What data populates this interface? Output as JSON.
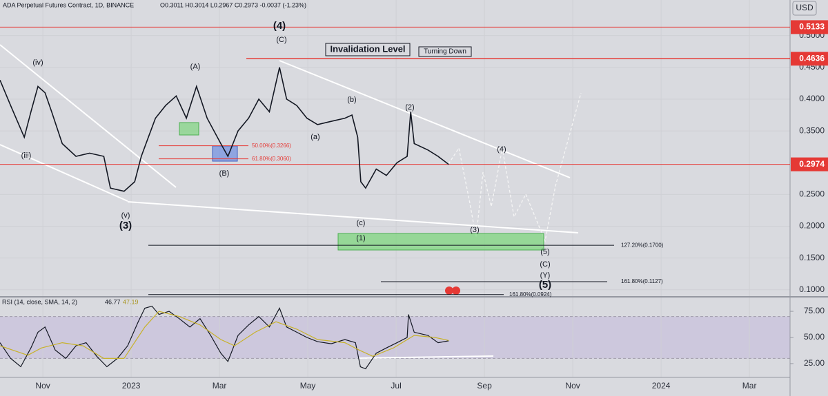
{
  "chart_data": [
    {
      "type": "line",
      "title": "ADA Perpetual Futures Contract, 1D, BINANCE",
      "subtitle": "O0.3011 H0.3014 L0.2967 C0.2973 -0.0037 (-1.23%)",
      "currency": "USD",
      "xlim": [
        -0.97,
        16.92
      ],
      "xticks": [
        {
          "value": 0,
          "label": "Nov"
        },
        {
          "value": 2,
          "label": "2023"
        },
        {
          "value": 4,
          "label": "Mar"
        },
        {
          "value": 6,
          "label": "May"
        },
        {
          "value": 8,
          "label": "Jul"
        },
        {
          "value": 10,
          "label": "Sep"
        },
        {
          "value": 12,
          "label": "Nov"
        },
        {
          "value": 14,
          "label": "2024"
        },
        {
          "value": 16,
          "label": "Mar"
        }
      ],
      "ylim": [
        0.09,
        0.556
      ],
      "yticks": [
        {
          "value": 0.1,
          "label": "0.1000"
        },
        {
          "value": 0.15,
          "label": "0.1500"
        },
        {
          "value": 0.2,
          "label": "0.2000"
        },
        {
          "value": 0.25,
          "label": "0.2500"
        },
        {
          "value": 0.35,
          "label": "0.3500"
        },
        {
          "value": 0.4,
          "label": "0.4000"
        },
        {
          "value": 0.45,
          "label": "0.4500"
        },
        {
          "value": 0.5,
          "label": "0.5000"
        }
      ],
      "grid": true,
      "series": [
        {
          "color": "#131722",
          "x": [
            -0.97,
            -0.73,
            -0.42,
            -0.27,
            -0.11,
            0.05,
            0.2,
            0.44,
            0.75,
            1.06,
            1.38,
            1.53,
            1.84,
            2.08,
            2.23,
            2.39,
            2.55,
            2.78,
            3.02,
            3.25,
            3.48,
            3.72,
            4.03,
            4.19,
            4.42,
            4.66,
            4.89,
            5.13,
            5.36,
            5.52,
            5.75,
            5.98,
            6.22,
            6.53,
            6.84,
            7.0,
            7.13,
            7.2,
            7.31,
            7.55,
            7.78,
            8.02,
            8.25,
            8.33,
            8.41,
            8.72,
            8.95,
            9.19
          ],
          "values": [
            0.43,
            0.39,
            0.34,
            0.38,
            0.42,
            0.41,
            0.38,
            0.33,
            0.31,
            0.315,
            0.31,
            0.26,
            0.255,
            0.27,
            0.31,
            0.34,
            0.37,
            0.39,
            0.405,
            0.37,
            0.42,
            0.37,
            0.33,
            0.31,
            0.35,
            0.37,
            0.4,
            0.38,
            0.45,
            0.4,
            0.39,
            0.37,
            0.36,
            0.365,
            0.37,
            0.375,
            0.34,
            0.27,
            0.26,
            0.29,
            0.28,
            0.3,
            0.31,
            0.38,
            0.33,
            0.32,
            0.31,
            0.2973
          ]
        }
      ],
      "price_lines": [
        0.5133,
        0.4636,
        0.2974
      ],
      "price_line_color": "#e53935",
      "levels": [
        {
          "value": 0.3266,
          "label": "50.00%(0.3266)",
          "color": "#e53935"
        },
        {
          "value": 0.306,
          "label": "61.80%(0.3060)",
          "color": "#e53935"
        },
        {
          "value": 0.17,
          "label": "127.20%(0.1700)",
          "color": "#131722"
        },
        {
          "value": 0.1127,
          "label": "161.80%(0.1127)",
          "color": "#131722"
        },
        {
          "value": 0.0924,
          "label": "161.80%(0.0924)",
          "color": "#131722"
        }
      ],
      "annotations": [
        "(4)",
        "(C)",
        "(3)",
        "(v)",
        "(iv)",
        "(iii)",
        "(A)",
        "(B)",
        "(a)",
        "(b)",
        "(c)",
        "(2)",
        "(1)",
        "(3)",
        "(4)",
        "(5)",
        "(C)",
        "(Y)",
        "(5)",
        "Invalidation Level",
        "Turning Down"
      ]
    },
    {
      "type": "line",
      "title": "RSI (14, close, SMA, 14, 2)",
      "ylim": [
        11.8,
        88.2
      ],
      "yticks": [
        {
          "value": 25,
          "label": "25.00"
        },
        {
          "value": 50,
          "label": "50.00"
        },
        {
          "value": 75,
          "label": "75.00"
        }
      ],
      "band": [
        30,
        70
      ],
      "legend_values": [
        46.77,
        47.19
      ],
      "series": [
        {
          "color": "#131722",
          "x": [
            -0.97,
            -0.73,
            -0.5,
            -0.27,
            -0.11,
            0.05,
            0.28,
            0.52,
            0.75,
            0.98,
            1.22,
            1.45,
            1.69,
            1.92,
            2.16,
            2.31,
            2.47,
            2.63,
            2.86,
            3.09,
            3.33,
            3.56,
            3.8,
            4.03,
            4.19,
            4.42,
            4.66,
            4.89,
            5.13,
            5.36,
            5.52,
            5.75,
            5.98,
            6.22,
            6.53,
            6.84,
            7.08,
            7.19,
            7.31,
            7.55,
            7.78,
            8.02,
            8.25,
            8.28,
            8.41,
            8.72,
            8.95,
            9.19
          ],
          "values": [
            45,
            30,
            22,
            40,
            55,
            60,
            38,
            30,
            42,
            45,
            32,
            22,
            30,
            42,
            65,
            78,
            80,
            72,
            75,
            68,
            60,
            68,
            52,
            35,
            27,
            52,
            62,
            70,
            60,
            78,
            60,
            55,
            50,
            46,
            44,
            48,
            45,
            22,
            20,
            35,
            40,
            45,
            50,
            72,
            55,
            52,
            45,
            46.77
          ]
        },
        {
          "color": "#c8b22a",
          "x": [
            -0.97,
            -0.34,
            -0.03,
            0.44,
            0.91,
            1.38,
            1.84,
            2.31,
            2.63,
            3.09,
            3.56,
            4.03,
            4.34,
            4.81,
            5.28,
            5.75,
            6.22,
            6.84,
            7.16,
            7.47,
            7.94,
            8.41,
            8.88,
            9.19
          ],
          "values": [
            42,
            33,
            40,
            45,
            42,
            30,
            30,
            60,
            75,
            70,
            62,
            48,
            42,
            55,
            65,
            58,
            48,
            45,
            38,
            32,
            40,
            52,
            50,
            47.19
          ]
        }
      ]
    }
  ]
}
